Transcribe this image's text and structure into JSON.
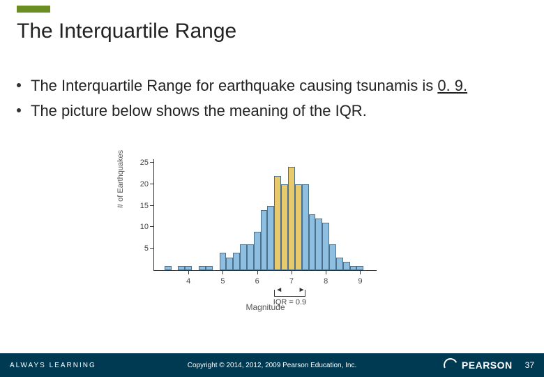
{
  "title": "The Interquartile Range",
  "bullets": [
    {
      "pre": "The Interquartile Range for earthquake causing tsunamis is ",
      "u": "0. 9.",
      "post": ""
    },
    {
      "pre": "The picture below shows the meaning of the IQR.",
      "u": "",
      "post": ""
    }
  ],
  "footer": {
    "left": "ALWAYS LEARNING",
    "center": "Copyright © 2014, 2012, 2009 Pearson Education, Inc.",
    "brand": "PEARSON",
    "page": "37"
  },
  "chart": {
    "type": "histogram",
    "y_axis_title": "# of Earthquakes",
    "x_axis_title": "Magnitude",
    "ylim": [
      0,
      26
    ],
    "yticks": [
      5,
      10,
      15,
      20,
      25
    ],
    "xlim": [
      3,
      9.5
    ],
    "xticks": [
      4,
      5,
      6,
      7,
      8,
      9
    ],
    "bin_width": 0.2,
    "bar_border": "#4a708b",
    "bar_blue": "#8fbfe0",
    "bar_yellow": "#e8c96b",
    "iqr_start": 6.5,
    "iqr_end": 7.4,
    "iqr_label": "IQR = 0.9",
    "bars": [
      {
        "x": 3.4,
        "h": 1,
        "c": "b"
      },
      {
        "x": 3.8,
        "h": 1,
        "c": "b"
      },
      {
        "x": 4.0,
        "h": 1,
        "c": "b"
      },
      {
        "x": 4.4,
        "h": 1,
        "c": "b"
      },
      {
        "x": 4.6,
        "h": 1,
        "c": "b"
      },
      {
        "x": 5.0,
        "h": 4,
        "c": "b"
      },
      {
        "x": 5.2,
        "h": 3,
        "c": "b"
      },
      {
        "x": 5.4,
        "h": 4,
        "c": "b"
      },
      {
        "x": 5.6,
        "h": 6,
        "c": "b"
      },
      {
        "x": 5.8,
        "h": 6,
        "c": "b"
      },
      {
        "x": 6.0,
        "h": 9,
        "c": "b"
      },
      {
        "x": 6.2,
        "h": 14,
        "c": "b"
      },
      {
        "x": 6.4,
        "h": 15,
        "c": "b"
      },
      {
        "x": 6.6,
        "h": 22,
        "c": "y"
      },
      {
        "x": 6.8,
        "h": 20,
        "c": "y"
      },
      {
        "x": 7.0,
        "h": 24,
        "c": "y"
      },
      {
        "x": 7.2,
        "h": 20,
        "c": "y"
      },
      {
        "x": 7.4,
        "h": 20,
        "c": "b"
      },
      {
        "x": 7.6,
        "h": 13,
        "c": "b"
      },
      {
        "x": 7.8,
        "h": 12,
        "c": "b"
      },
      {
        "x": 8.0,
        "h": 11,
        "c": "b"
      },
      {
        "x": 8.2,
        "h": 6,
        "c": "b"
      },
      {
        "x": 8.4,
        "h": 3,
        "c": "b"
      },
      {
        "x": 8.6,
        "h": 2,
        "c": "b"
      },
      {
        "x": 8.8,
        "h": 1,
        "c": "b"
      },
      {
        "x": 9.0,
        "h": 1,
        "c": "b"
      }
    ]
  }
}
